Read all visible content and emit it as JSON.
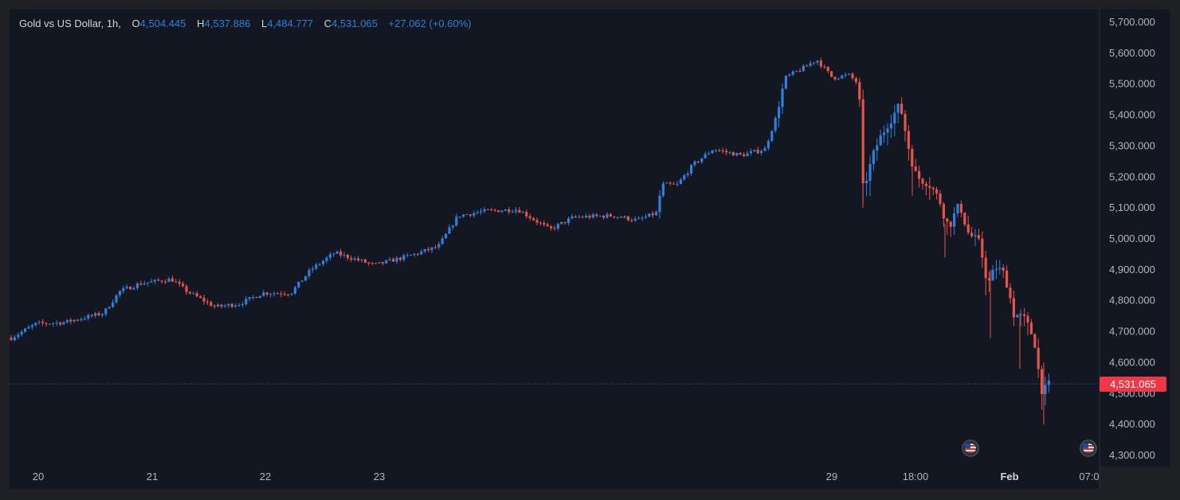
{
  "header": {
    "symbol": "Gold vs US Dollar, 1h,",
    "o_label": "O",
    "o_value": "4,504.445",
    "h_label": "H",
    "h_value": "4,537.886",
    "l_label": "L",
    "l_value": "4,484.777",
    "c_label": "C",
    "c_value": "4,531.065",
    "change": "+27.062 (+0.60%)"
  },
  "current_price_label": "4,531.065",
  "colors": {
    "background": "#131722",
    "up": "#2f7fdb",
    "down": "#e5534b",
    "axis_text": "#b2b5be",
    "price_tag": "#f23645"
  },
  "icons": [
    "us-flag-icon",
    "us-flag-icon"
  ],
  "chart_data": {
    "type": "candlestick",
    "title": "Gold vs US Dollar, 1h",
    "y_ticks": [
      "5,700.000",
      "5,600.000",
      "5,500.000",
      "5,400.000",
      "5,300.000",
      "5,200.000",
      "5,100.000",
      "5,000.000",
      "4,900.000",
      "4,800.000",
      "4,700.000",
      "4,600.000",
      "4,500.000",
      "4,400.000",
      "4,300.000"
    ],
    "x_ticks": [
      "20",
      "21",
      "22",
      "23",
      "29",
      "18:00",
      "Feb",
      "07:0"
    ],
    "ylim": [
      4250,
      5750
    ],
    "last_price": 4531.065,
    "grid": false,
    "key_points": [
      {
        "x": "20",
        "close": 4700
      },
      {
        "x": "21",
        "close": 4860
      },
      {
        "x": "22",
        "close": 4830
      },
      {
        "x": "23",
        "close": 4930
      },
      {
        "x": "23 late",
        "close": 5080
      },
      {
        "x": "peak",
        "close": 5590
      },
      {
        "x": "29",
        "close": 5520
      },
      {
        "x": "drop",
        "close": 5150
      },
      {
        "x": "18:00",
        "close": 5420
      },
      {
        "x": "Feb",
        "close": 4900
      },
      {
        "x": "last",
        "close": 4531.065
      }
    ],
    "candles": []
  }
}
